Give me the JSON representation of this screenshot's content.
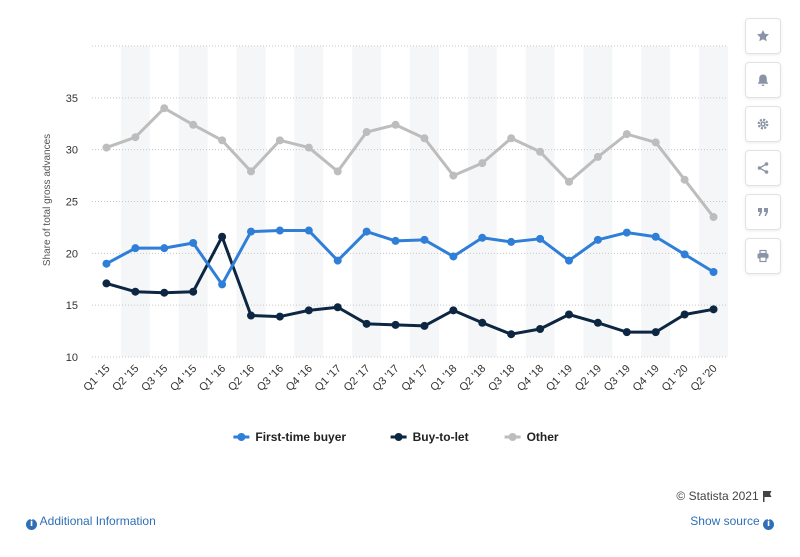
{
  "chart_data": {
    "type": "line",
    "categories": [
      "Q1 '15",
      "Q2 '15",
      "Q3 '15",
      "Q4 '15",
      "Q1 '16",
      "Q2 '16",
      "Q3 '16",
      "Q4 '16",
      "Q1 '17",
      "Q2 '17",
      "Q3 '17",
      "Q4 '17",
      "Q1 '18",
      "Q2 '18",
      "Q3 '18",
      "Q4 '18",
      "Q1 '19",
      "Q2 '19",
      "Q3 '19",
      "Q4 '19",
      "Q1 '20",
      "Q2 '20"
    ],
    "series": [
      {
        "name": "First-time buyer",
        "color": "#2f7ed8",
        "values": [
          19.0,
          20.5,
          20.5,
          21.0,
          17.0,
          22.1,
          22.2,
          22.2,
          19.3,
          22.1,
          21.2,
          21.3,
          19.7,
          21.5,
          21.1,
          21.4,
          19.3,
          21.3,
          22.0,
          21.6,
          19.9,
          18.2
        ]
      },
      {
        "name": "Buy-to-let",
        "color": "#0d2641",
        "values": [
          17.1,
          16.3,
          16.2,
          16.3,
          21.6,
          14.0,
          13.9,
          14.5,
          14.8,
          13.2,
          13.1,
          13.0,
          14.5,
          13.3,
          12.2,
          12.7,
          14.1,
          13.3,
          12.4,
          12.4,
          14.1,
          14.6
        ]
      },
      {
        "name": "Other",
        "color": "#bdbdbd",
        "values": [
          30.2,
          31.2,
          34.0,
          32.4,
          30.9,
          27.9,
          30.9,
          30.2,
          27.9,
          31.7,
          32.4,
          31.1,
          27.5,
          28.7,
          31.1,
          29.8,
          26.9,
          29.3,
          31.5,
          30.7,
          27.1,
          23.5
        ]
      }
    ],
    "yticks": [
      10,
      15,
      20,
      25,
      30,
      35
    ],
    "ylim": [
      10,
      40
    ],
    "ylabel": "Share of total gross advances",
    "xlabel": "",
    "grid": true,
    "legend_position": "bottom-center"
  },
  "toolbar": {
    "buttons": [
      {
        "name": "favorite-button",
        "icon": "star-icon",
        "glyph": "★"
      },
      {
        "name": "alert-button",
        "icon": "bell-icon",
        "glyph": "bell"
      },
      {
        "name": "settings-button",
        "icon": "gear-icon",
        "glyph": "⚙"
      },
      {
        "name": "share-button",
        "icon": "share-icon",
        "glyph": "share"
      },
      {
        "name": "cite-button",
        "icon": "quote-icon",
        "glyph": "❞"
      },
      {
        "name": "print-button",
        "icon": "print-icon",
        "glyph": "print"
      }
    ]
  },
  "footer": {
    "credit": "© Statista 2021",
    "additional_info": "Additional Information",
    "show_source": "Show source"
  }
}
